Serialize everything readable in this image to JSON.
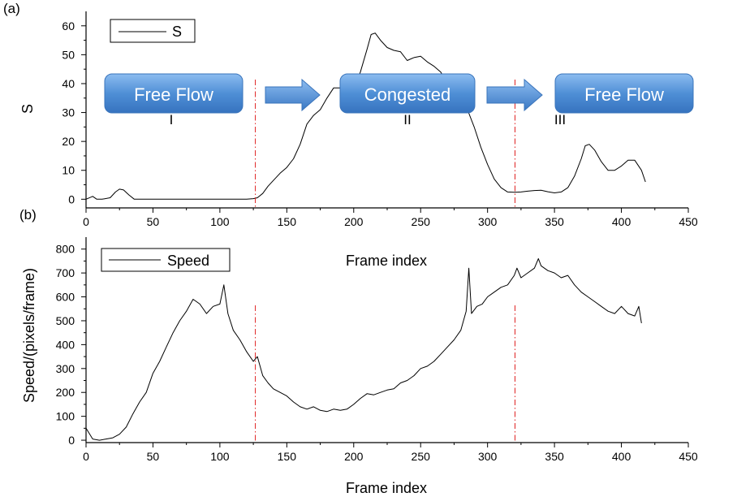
{
  "figure": {
    "panel_a_label": "(a)",
    "panel_b_label": "(b)",
    "phase_labels": [
      "Free Flow",
      "Congested",
      "Free Flow"
    ],
    "region_labels": [
      "I",
      "II",
      "III"
    ],
    "colors": {
      "line": "#000000",
      "divider": "#e02020",
      "phase_box": "#4f8fd6",
      "arrow": "#4f8fd6"
    }
  },
  "chart_data": [
    {
      "type": "line",
      "xlabel": "Frame index",
      "ylabel": "S",
      "xlim": [
        0,
        450
      ],
      "ylim": [
        -3,
        65
      ],
      "x_ticks": [
        0,
        50,
        100,
        150,
        200,
        250,
        300,
        350,
        400,
        450
      ],
      "y_ticks": [
        0,
        10,
        20,
        30,
        40,
        50,
        60
      ],
      "legend": "top-left",
      "series": [
        {
          "name": "S",
          "x": [
            0,
            5,
            8,
            12,
            18,
            22,
            25,
            28,
            32,
            36,
            40,
            60,
            80,
            100,
            120,
            125,
            128,
            132,
            136,
            140,
            145,
            150,
            155,
            160,
            165,
            170,
            175,
            180,
            185,
            190,
            195,
            200,
            205,
            210,
            213,
            216,
            220,
            225,
            230,
            235,
            240,
            245,
            250,
            255,
            260,
            265,
            270,
            275,
            280,
            285,
            290,
            295,
            300,
            305,
            310,
            315,
            320,
            325,
            330,
            335,
            340,
            345,
            350,
            355,
            360,
            365,
            370,
            373,
            376,
            380,
            385,
            390,
            395,
            400,
            405,
            410,
            415,
            418
          ],
          "values": [
            0,
            1,
            0,
            0,
            0.5,
            2.5,
            3.5,
            3.2,
            1.5,
            0,
            0,
            0,
            0,
            0,
            0,
            0.2,
            0.5,
            2,
            4.5,
            6.5,
            9,
            11,
            14,
            19,
            26,
            29,
            31,
            35,
            38.5,
            38.5,
            36,
            38,
            44,
            52,
            57,
            57.5,
            55,
            52.5,
            51.5,
            51,
            48,
            49,
            49.5,
            47.5,
            46,
            44,
            40,
            38,
            34,
            31,
            25,
            18,
            12,
            7,
            4,
            2.5,
            2.4,
            2.5,
            2.8,
            3,
            3.1,
            2.6,
            2.2,
            2.5,
            4,
            8,
            14,
            18.5,
            19,
            17,
            13,
            10,
            10,
            11.5,
            13.5,
            13.5,
            10,
            6
          ]
        }
      ]
    },
    {
      "type": "line",
      "xlabel": "Frame index",
      "ylabel": "Speed/(pixels/frame)",
      "xlim": [
        0,
        450
      ],
      "ylim": [
        -10,
        850
      ],
      "x_ticks": [
        0,
        50,
        100,
        150,
        200,
        250,
        300,
        350,
        400,
        450
      ],
      "y_ticks": [
        0,
        100,
        200,
        300,
        400,
        500,
        600,
        700,
        800
      ],
      "legend": "top-left",
      "series": [
        {
          "name": "Speed",
          "x": [
            0,
            5,
            10,
            15,
            20,
            25,
            30,
            35,
            40,
            45,
            50,
            55,
            60,
            65,
            70,
            75,
            80,
            85,
            90,
            95,
            100,
            103,
            106,
            110,
            115,
            120,
            125,
            128,
            132,
            136,
            140,
            145,
            150,
            155,
            160,
            165,
            170,
            175,
            180,
            185,
            190,
            195,
            200,
            205,
            210,
            215,
            220,
            225,
            230,
            235,
            240,
            245,
            250,
            255,
            260,
            265,
            270,
            275,
            280,
            284,
            286,
            288,
            292,
            296,
            300,
            305,
            310,
            315,
            320,
            322,
            325,
            330,
            335,
            338,
            340,
            345,
            350,
            355,
            360,
            365,
            370,
            375,
            380,
            385,
            390,
            395,
            400,
            405,
            410,
            413,
            415
          ],
          "values": [
            50,
            5,
            0,
            5,
            10,
            25,
            55,
            110,
            160,
            200,
            280,
            330,
            390,
            450,
            500,
            540,
            590,
            570,
            530,
            560,
            570,
            650,
            530,
            460,
            420,
            370,
            330,
            350,
            270,
            240,
            215,
            200,
            185,
            160,
            140,
            130,
            140,
            125,
            120,
            130,
            125,
            130,
            150,
            175,
            195,
            190,
            200,
            210,
            215,
            240,
            250,
            270,
            300,
            310,
            330,
            360,
            390,
            420,
            460,
            540,
            720,
            530,
            560,
            570,
            600,
            620,
            640,
            650,
            690,
            720,
            680,
            700,
            720,
            760,
            730,
            710,
            700,
            680,
            690,
            650,
            620,
            600,
            580,
            560,
            540,
            530,
            560,
            530,
            520,
            560,
            490
          ]
        }
      ]
    }
  ]
}
